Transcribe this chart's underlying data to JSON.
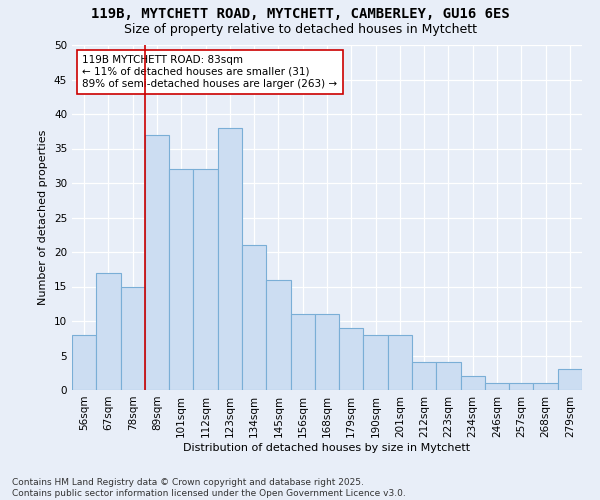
{
  "title": "119B, MYTCHETT ROAD, MYTCHETT, CAMBERLEY, GU16 6ES",
  "subtitle": "Size of property relative to detached houses in Mytchett",
  "xlabel": "Distribution of detached houses by size in Mytchett",
  "ylabel": "Number of detached properties",
  "categories": [
    "56sqm",
    "67sqm",
    "78sqm",
    "89sqm",
    "101sqm",
    "112sqm",
    "123sqm",
    "134sqm",
    "145sqm",
    "156sqm",
    "168sqm",
    "179sqm",
    "190sqm",
    "201sqm",
    "212sqm",
    "223sqm",
    "234sqm",
    "246sqm",
    "257sqm",
    "268sqm",
    "279sqm"
  ],
  "values": [
    8,
    17,
    15,
    37,
    32,
    32,
    38,
    21,
    16,
    11,
    11,
    9,
    8,
    8,
    4,
    4,
    2,
    1,
    1,
    1,
    3
  ],
  "bar_color": "#ccddf2",
  "bar_edge_color": "#7aaed6",
  "vline_x_index": 2.5,
  "vline_color": "#cc0000",
  "annotation_text": "119B MYTCHETT ROAD: 83sqm\n← 11% of detached houses are smaller (31)\n89% of semi-detached houses are larger (263) →",
  "annotation_box_color": "#ffffff",
  "annotation_box_edge": "#cc0000",
  "footnote": "Contains HM Land Registry data © Crown copyright and database right 2025.\nContains public sector information licensed under the Open Government Licence v3.0.",
  "ylim": [
    0,
    50
  ],
  "yticks": [
    0,
    5,
    10,
    15,
    20,
    25,
    30,
    35,
    40,
    45,
    50
  ],
  "title_fontsize": 10,
  "subtitle_fontsize": 9,
  "axis_label_fontsize": 8,
  "tick_fontsize": 7.5,
  "annotation_fontsize": 7.5,
  "footnote_fontsize": 6.5,
  "background_color": "#e8eef8"
}
